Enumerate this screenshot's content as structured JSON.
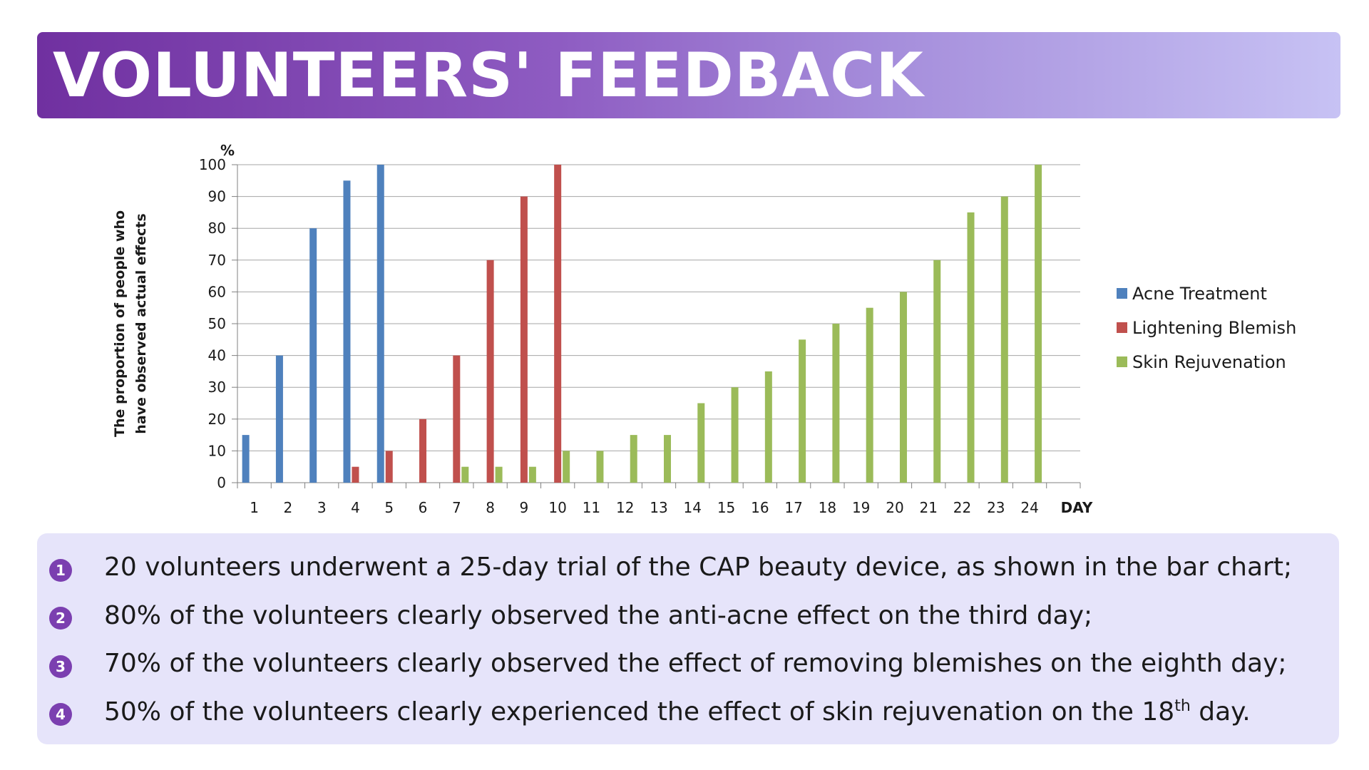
{
  "header": {
    "title": "VOLUNTEERS' FEEDBACK"
  },
  "chart_data": {
    "type": "bar",
    "ylabel_line1": "The proportion of people who",
    "ylabel_line2": "have observed actual effects",
    "y_unit": "%",
    "xlabel": "DAY",
    "ylim": [
      0,
      100
    ],
    "yticks": [
      0,
      10,
      20,
      30,
      40,
      50,
      60,
      70,
      80,
      90,
      100
    ],
    "grid": true,
    "legend_position": "right",
    "categories": [
      "1",
      "2",
      "3",
      "4",
      "5",
      "6",
      "7",
      "8",
      "9",
      "10",
      "11",
      "12",
      "13",
      "14",
      "15",
      "16",
      "17",
      "18",
      "19",
      "20",
      "21",
      "22",
      "23",
      "24",
      ""
    ],
    "series": [
      {
        "name": "Acne Treatment",
        "color": "#4f81bd",
        "values": [
          15,
          40,
          80,
          95,
          100,
          0,
          0,
          0,
          0,
          0,
          0,
          0,
          0,
          0,
          0,
          0,
          0,
          0,
          0,
          0,
          0,
          0,
          0,
          0,
          0
        ]
      },
      {
        "name": "Lightening Blemish",
        "color": "#c0504d",
        "values": [
          0,
          0,
          0,
          5,
          10,
          20,
          40,
          70,
          90,
          100,
          0,
          0,
          0,
          0,
          0,
          0,
          0,
          0,
          0,
          0,
          0,
          0,
          0,
          0,
          0
        ]
      },
      {
        "name": "Skin Rejuvenation",
        "color": "#9bbb59",
        "values": [
          0,
          0,
          0,
          0,
          0,
          0,
          5,
          5,
          5,
          10,
          10,
          15,
          15,
          25,
          30,
          35,
          45,
          50,
          55,
          60,
          70,
          85,
          90,
          100,
          0
        ]
      }
    ]
  },
  "notes": [
    {
      "num": "1",
      "text": "20 volunteers underwent a 25-day trial of the CAP beauty device, as shown in the bar chart;"
    },
    {
      "num": "2",
      "text": "80% of the volunteers clearly observed the anti-acne effect on the third day;"
    },
    {
      "num": "3",
      "text": "70% of the volunteers clearly observed the effect of removing blemishes on the eighth day;"
    },
    {
      "num": "4",
      "text": "50% of the volunteers clearly experienced the effect of skin rejuvenation on the 18",
      "sup": "th",
      "tail": " day."
    }
  ]
}
